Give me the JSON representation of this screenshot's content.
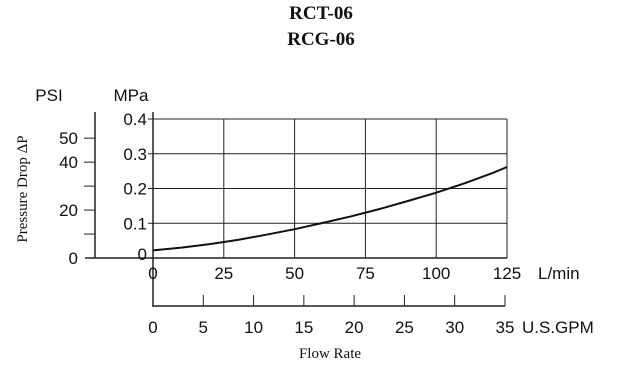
{
  "chart_data": {
    "type": "line",
    "title_lines": [
      "RCT-06",
      "RCG-06"
    ],
    "ylabel": "Pressure Drop ΔP",
    "xlabel": "Flow Rate",
    "y_units": {
      "psi": "PSI",
      "mpa": "MPa"
    },
    "x_units": {
      "lmin": "L/min",
      "gpm": "U.S.GPM"
    },
    "x_lmin_ticks": [
      0,
      25,
      50,
      75,
      100,
      125
    ],
    "x_lmin_range": [
      0,
      125
    ],
    "x_gpm_ticks": [
      0,
      5,
      10,
      15,
      20,
      25,
      30,
      35
    ],
    "x_gpm_range": [
      0,
      35
    ],
    "y_mpa_ticks": [
      "0",
      "0.1",
      "0.2",
      "0.3",
      "0.4"
    ],
    "y_mpa_range": [
      0,
      0.4
    ],
    "y_psi_labels": [
      "0",
      "20",
      "40",
      "50"
    ],
    "y_psi_values": [
      0,
      20,
      40,
      50
    ],
    "y_psi_minor": [
      10,
      30
    ],
    "grid": true,
    "series": [
      {
        "x": [
          0,
          10,
          20,
          30,
          40,
          50,
          60,
          70,
          80,
          90,
          100,
          110,
          120,
          125
        ],
        "y": [
          0.022,
          0.03,
          0.04,
          0.052,
          0.067,
          0.083,
          0.101,
          0.12,
          0.141,
          0.164,
          0.188,
          0.215,
          0.245,
          0.262
        ]
      }
    ]
  }
}
